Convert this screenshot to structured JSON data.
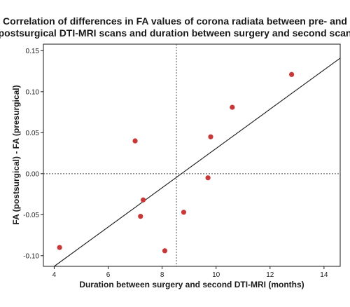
{
  "chart_data": {
    "type": "scatter",
    "title_lines": [
      "Correlation of differences in FA values of corona radiata between pre- and",
      "postsurgical DTI-MRI scans and duration between surgery and second scan"
    ],
    "xlabel": "Duration between surgery and second DTI-MRI (months)",
    "ylabel": "FA (postsurgical) - FA (presurgical)",
    "xlim": [
      3.6,
      14.6
    ],
    "ylim": [
      -0.113,
      0.158
    ],
    "x_ticks": [
      4,
      6,
      8,
      10,
      12,
      14
    ],
    "y_ticks": [
      -0.1,
      -0.05,
      0.0,
      0.05,
      0.1,
      0.15
    ],
    "x_tick_labels": [
      "4",
      "6",
      "8",
      "10",
      "12",
      "14"
    ],
    "y_tick_labels": [
      "-0.10",
      "-0.05",
      "0.00",
      "0.05",
      "0.10",
      "0.15"
    ],
    "grid": false,
    "reference_lines": {
      "x": 8.53,
      "y": 0.0,
      "style": "dotted"
    },
    "fit_line": {
      "type": "linear",
      "x": [
        4.0,
        14.6
      ],
      "y": [
        -0.113,
        0.141
      ]
    },
    "points": [
      {
        "x": 4.2,
        "y": -0.09
      },
      {
        "x": 7.0,
        "y": 0.04
      },
      {
        "x": 7.2,
        "y": -0.052
      },
      {
        "x": 7.3,
        "y": -0.032
      },
      {
        "x": 8.1,
        "y": -0.094
      },
      {
        "x": 8.8,
        "y": -0.047
      },
      {
        "x": 9.7,
        "y": -0.005
      },
      {
        "x": 9.8,
        "y": 0.045
      },
      {
        "x": 10.6,
        "y": 0.081
      },
      {
        "x": 12.8,
        "y": 0.121
      }
    ],
    "marker_color": "#c83838",
    "line_color": "#1a1a1a"
  }
}
